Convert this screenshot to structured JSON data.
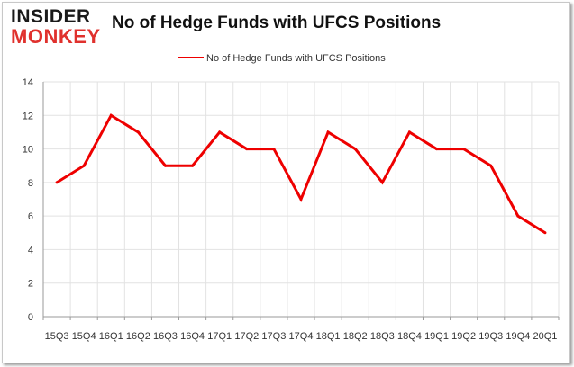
{
  "logo": {
    "top": "INSIDER",
    "bottom": "MONKEY"
  },
  "colors": {
    "line": "#ee0000",
    "grid": "#e2e2e2",
    "axis": "#9a9a9a",
    "logo_accent": "#e0312d"
  },
  "chart_data": {
    "type": "line",
    "title": "No of Hedge Funds with UFCS Positions",
    "xlabel": "",
    "ylabel": "",
    "categories": [
      "15Q3",
      "15Q4",
      "16Q1",
      "16Q2",
      "16Q3",
      "16Q4",
      "17Q1",
      "17Q2",
      "17Q3",
      "17Q4",
      "18Q1",
      "18Q2",
      "18Q3",
      "18Q4",
      "19Q1",
      "19Q2",
      "19Q3",
      "19Q4",
      "20Q1"
    ],
    "series": [
      {
        "name": "No of Hedge Funds with UFCS Positions",
        "values": [
          8,
          9,
          12,
          11,
          9,
          9,
          11,
          10,
          10,
          7,
          11,
          10,
          8,
          11,
          10,
          10,
          9,
          6,
          5
        ]
      }
    ],
    "ylim": [
      0,
      14
    ],
    "yticks": [
      0,
      2,
      4,
      6,
      8,
      10,
      12,
      14
    ],
    "grid": true,
    "legend": "top-center"
  }
}
